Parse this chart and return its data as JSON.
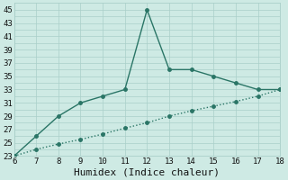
{
  "top_x": [
    6,
    7,
    8,
    9,
    10,
    11,
    12,
    13,
    14,
    15,
    16,
    17,
    18
  ],
  "top_y": [
    23,
    26,
    29,
    31,
    32,
    33,
    45,
    36,
    36,
    35,
    34,
    33,
    33
  ],
  "bot_x": [
    6,
    7,
    8,
    9,
    10,
    11,
    12,
    13,
    14,
    15,
    16,
    17,
    18
  ],
  "bot_y": [
    23,
    24,
    24.8,
    25.5,
    26.3,
    27.2,
    28.0,
    29.0,
    29.8,
    30.5,
    31.2,
    32.0,
    33.0
  ],
  "line_color": "#2a7566",
  "bg_color": "#ceeae4",
  "grid_color": "#aacfc9",
  "xlabel": "Humidex (Indice chaleur)",
  "xlim": [
    6,
    18
  ],
  "ylim": [
    23,
    46
  ],
  "yticks": [
    23,
    25,
    27,
    29,
    31,
    33,
    35,
    37,
    39,
    41,
    43,
    45
  ],
  "xticks": [
    6,
    7,
    8,
    9,
    10,
    11,
    12,
    13,
    14,
    15,
    16,
    17,
    18
  ],
  "marker_size": 2.5,
  "line_width": 1.0,
  "xlabel_fontsize": 8,
  "tick_fontsize": 6.5
}
